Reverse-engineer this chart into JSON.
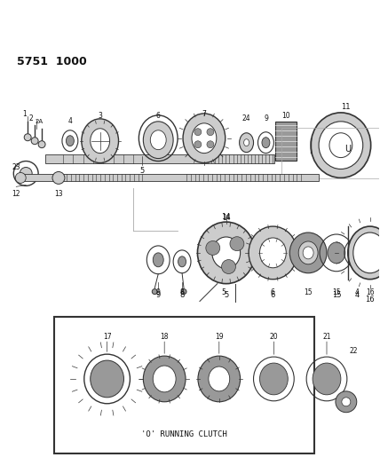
{
  "title": "5751  1000",
  "background_color": "#ffffff",
  "fig_width": 4.28,
  "fig_height": 5.33,
  "dpi": 100,
  "line_color": "#333333",
  "gray_light": "#cccccc",
  "gray_mid": "#999999",
  "gray_dark": "#555555",
  "white": "#ffffff",
  "inset_text": "'O' RUNNING CLUTCH"
}
